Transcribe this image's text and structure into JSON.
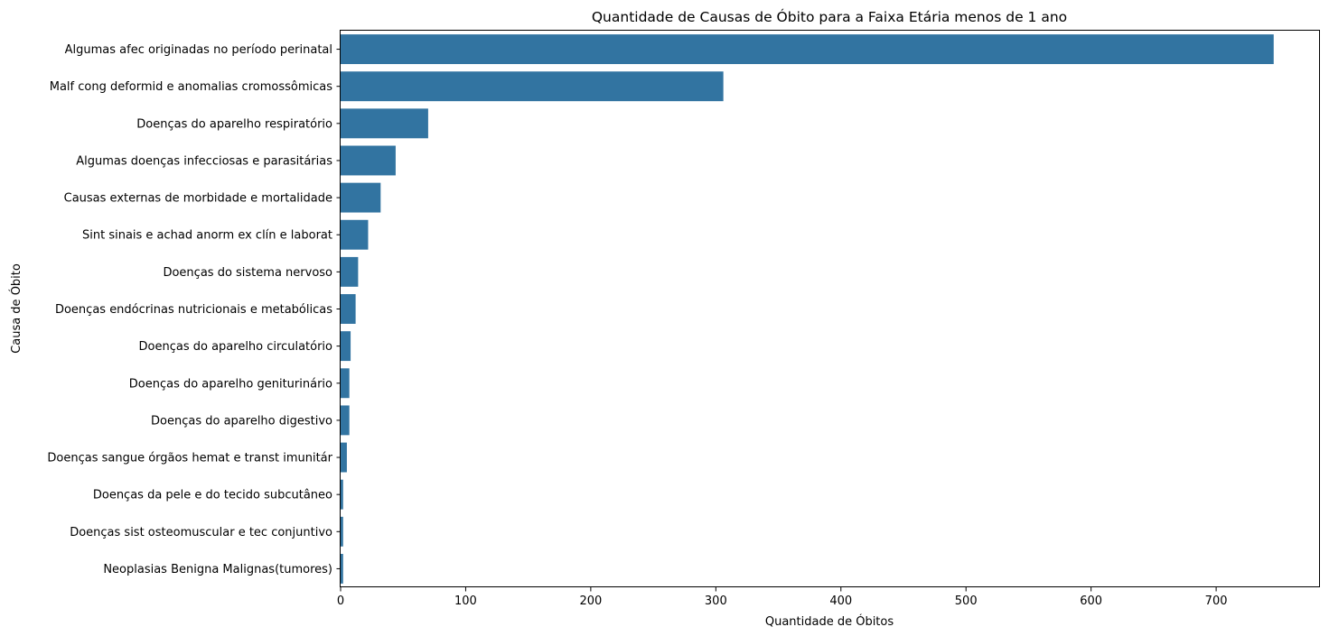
{
  "chart_data": {
    "type": "bar",
    "orientation": "horizontal",
    "title": "Quantidade de Causas de Óbito para a Faixa Etária menos de 1 ano",
    "xlabel": "Quantidade de Óbitos",
    "ylabel": "Causa de Óbito",
    "xlim": [
      0,
      783
    ],
    "xticks": [
      0,
      100,
      200,
      300,
      400,
      500,
      600,
      700
    ],
    "grid": false,
    "bar_color": "#3274a1",
    "categories": [
      "Algumas afec originadas no período perinatal",
      "Malf cong deformid e anomalias cromossômicas",
      "Doenças do aparelho respiratório",
      "Algumas doenças infecciosas e parasitárias",
      "Causas externas de morbidade e mortalidade",
      "Sint sinais e achad anorm ex clín e laborat",
      "Doenças do sistema nervoso",
      "Doenças endócrinas nutricionais e metabólicas",
      "Doenças do aparelho circulatório",
      "Doenças do aparelho geniturinário",
      "Doenças do aparelho digestivo",
      "Doenças sangue órgãos hemat e transt imunitár",
      "Doenças da pele e do tecido subcutâneo",
      "Doenças sist osteomuscular e tec conjuntivo",
      "Neoplasias Benigna Malignas(tumores)"
    ],
    "values": [
      746,
      306,
      70,
      44,
      32,
      22,
      14,
      12,
      8,
      7,
      7,
      5,
      2,
      2,
      2
    ]
  }
}
